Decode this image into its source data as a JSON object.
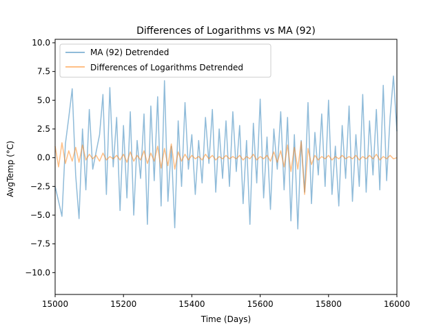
{
  "chart_data": {
    "type": "line",
    "title": "Differences of Logarithms vs MA (92)",
    "xlabel": "Time (Days)",
    "ylabel": "AvgTemp (°C)",
    "xlim": [
      15000,
      16000
    ],
    "ylim": [
      -11.9,
      10.3
    ],
    "xticks": [
      15000,
      15200,
      15400,
      15600,
      15800,
      16000
    ],
    "yticks": [
      -10.0,
      -7.5,
      -5.0,
      -2.5,
      0.0,
      2.5,
      5.0,
      7.5,
      10.0
    ],
    "xtick_labels": [
      "15000",
      "15200",
      "15400",
      "15600",
      "15800",
      "16000"
    ],
    "ytick_labels": [
      "−10.0",
      "−7.5",
      "−5.0",
      "−2.5",
      "0.0",
      "2.5",
      "5.0",
      "7.5",
      "10.0"
    ],
    "grid": false,
    "legend": {
      "placement": "top-left"
    },
    "series": [
      {
        "name": "MA (92) Detrended",
        "color": "#1f77b4",
        "x": [
          15000,
          15010,
          15020,
          15030,
          15040,
          15050,
          15060,
          15070,
          15080,
          15090,
          15100,
          15110,
          15120,
          15130,
          15140,
          15150,
          15160,
          15170,
          15180,
          15190,
          15200,
          15210,
          15220,
          15230,
          15240,
          15250,
          15260,
          15270,
          15280,
          15290,
          15300,
          15310,
          15320,
          15330,
          15340,
          15350,
          15360,
          15370,
          15380,
          15390,
          15400,
          15410,
          15420,
          15430,
          15440,
          15450,
          15460,
          15470,
          15480,
          15490,
          15500,
          15510,
          15520,
          15530,
          15540,
          15550,
          15560,
          15570,
          15580,
          15590,
          15600,
          15610,
          15620,
          15630,
          15640,
          15650,
          15660,
          15670,
          15680,
          15690,
          15700,
          15710,
          15720,
          15730,
          15740,
          15750,
          15760,
          15770,
          15780,
          15790,
          15800,
          15810,
          15820,
          15830,
          15840,
          15850,
          15860,
          15870,
          15880,
          15890,
          15900,
          15910,
          15920,
          15930,
          15940,
          15950,
          15960,
          15970,
          15980,
          15990,
          16000
        ],
        "values": [
          -2.5,
          -3.8,
          -5.1,
          1.2,
          3.5,
          6.0,
          -1.5,
          -5.3,
          2.5,
          -2.8,
          4.2,
          -1.0,
          0.5,
          2.0,
          5.5,
          -3.2,
          6.1,
          -0.8,
          3.5,
          -4.6,
          2.8,
          -3.5,
          4.0,
          -5.0,
          1.5,
          -1.8,
          3.8,
          -5.8,
          4.5,
          -2.0,
          5.3,
          -4.2,
          6.7,
          -3.8,
          1.0,
          -6.1,
          3.2,
          -2.5,
          4.8,
          -1.0,
          2.0,
          -3.2,
          1.5,
          -2.2,
          3.5,
          -0.5,
          4.2,
          -3.0,
          2.5,
          -1.8,
          3.2,
          -2.5,
          4.0,
          -1.2,
          2.8,
          -4.0,
          1.5,
          -5.8,
          3.0,
          -2.2,
          5.1,
          -3.5,
          1.8,
          -4.5,
          2.5,
          -1.0,
          4.0,
          -2.8,
          3.5,
          -5.5,
          2.0,
          -6.2,
          1.5,
          -3.0,
          4.8,
          -4.0,
          2.2,
          -1.5,
          3.8,
          -2.5,
          5.0,
          -3.2,
          1.0,
          -4.2,
          2.8,
          -1.8,
          4.5,
          -3.8,
          2.0,
          -2.5,
          5.5,
          -3.0,
          3.2,
          -1.5,
          4.2,
          -2.8,
          6.3,
          -2.0,
          3.5,
          7.1,
          2.3
        ]
      },
      {
        "name": "Differences of Logarithms Detrended",
        "color": "#ff7f0e",
        "x": [
          15000,
          15010,
          15020,
          15030,
          15040,
          15050,
          15060,
          15070,
          15080,
          15090,
          15100,
          15110,
          15120,
          15130,
          15140,
          15150,
          15160,
          15170,
          15180,
          15190,
          15200,
          15210,
          15220,
          15230,
          15240,
          15250,
          15260,
          15270,
          15280,
          15290,
          15300,
          15310,
          15320,
          15330,
          15340,
          15350,
          15360,
          15370,
          15380,
          15390,
          15400,
          15410,
          15420,
          15430,
          15440,
          15450,
          15460,
          15470,
          15480,
          15490,
          15500,
          15510,
          15520,
          15530,
          15540,
          15550,
          15560,
          15570,
          15580,
          15590,
          15600,
          15610,
          15620,
          15630,
          15640,
          15650,
          15660,
          15670,
          15680,
          15690,
          15700,
          15710,
          15720,
          15730,
          15740,
          15750,
          15760,
          15770,
          15780,
          15790,
          15800,
          15810,
          15820,
          15830,
          15840,
          15850,
          15860,
          15870,
          15880,
          15890,
          15900,
          15910,
          15920,
          15930,
          15940,
          15950,
          15960,
          15970,
          15980,
          15990,
          16000
        ],
        "values": [
          1.0,
          -0.8,
          1.3,
          -0.5,
          0.6,
          -0.3,
          0.9,
          -0.4,
          1.1,
          -0.2,
          0.3,
          -0.1,
          0.2,
          -0.3,
          0.4,
          -0.2,
          0.1,
          -0.1,
          0.2,
          -0.2,
          0.3,
          -0.4,
          0.5,
          -0.3,
          0.2,
          -0.2,
          0.6,
          -0.5,
          0.4,
          -0.3,
          1.0,
          -0.9,
          0.8,
          -0.7,
          1.2,
          -1.0,
          0.5,
          -0.3,
          0.3,
          -0.2,
          0.2,
          -0.1,
          0.1,
          -0.2,
          0.3,
          -0.1,
          0.2,
          -0.2,
          0.1,
          -0.1,
          0.2,
          -0.1,
          0.1,
          -0.1,
          0.2,
          -0.2,
          0.1,
          -0.1,
          0.3,
          -0.2,
          0.1,
          -0.1,
          0.2,
          -0.3,
          0.5,
          -0.4,
          0.6,
          -0.8,
          1.1,
          -1.2,
          0.9,
          -1.0,
          1.4,
          -3.2,
          0.8,
          -0.6,
          0.2,
          -0.2,
          0.1,
          -0.1,
          0.2,
          -0.2,
          0.1,
          -0.1,
          0.2,
          -0.1,
          0.1,
          -0.1,
          0.2,
          -0.2,
          0.1,
          -0.1,
          0.2,
          -0.1,
          0.3,
          -0.2,
          0.1,
          -0.1,
          0.2,
          -0.1,
          0.0
        ]
      }
    ]
  }
}
